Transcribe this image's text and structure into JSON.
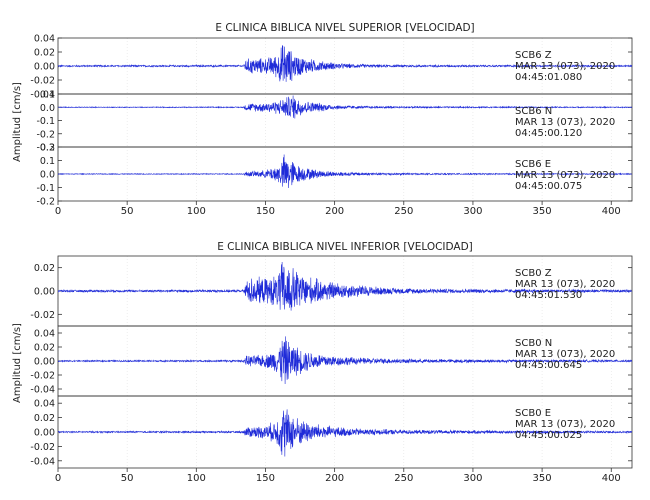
{
  "colors": {
    "trace": "#1f2bd8",
    "frame": "#333333",
    "text": "#222222",
    "grid": "#e2e2e2"
  },
  "chart_data": [
    {
      "type": "line",
      "title": "E CLINICA BIBLICA NIVEL SUPERIOR [VELOCIDAD]",
      "ylabel": "Amplitud [cm/s]",
      "xlabel": "",
      "xlim": [
        0,
        415
      ],
      "xticks": [
        0,
        50,
        100,
        150,
        200,
        250,
        300,
        350,
        400
      ],
      "grid": true,
      "legend": "none",
      "series": [
        {
          "name": "SCB6 Z",
          "label_lines": [
            "SCB6 Z",
            "MAR 13 (073), 2020",
            "04:45:01.080"
          ],
          "ylim": [
            -0.04,
            0.04
          ],
          "yticks": [
            0.04,
            0.02,
            0.0,
            -0.02,
            -0.04
          ],
          "ytick_labels": [
            "0.04",
            "0.02",
            "0.00",
            "-0.02",
            "-0.04"
          ],
          "envelope": [
            [
              0,
              0.0012
            ],
            [
              134,
              0.0015
            ],
            [
              136,
              0.011
            ],
            [
              140,
              0.013
            ],
            [
              150,
              0.012
            ],
            [
              158,
              0.018
            ],
            [
              163,
              0.038
            ],
            [
              167,
              0.028
            ],
            [
              172,
              0.018
            ],
            [
              180,
              0.012
            ],
            [
              190,
              0.008
            ],
            [
              200,
              0.005
            ],
            [
              215,
              0.003
            ],
            [
              240,
              0.002
            ],
            [
              300,
              0.0015
            ],
            [
              415,
              0.0012
            ]
          ]
        },
        {
          "name": "SCB6 N",
          "label_lines": [
            "SCB6 N",
            "MAR 13 (073), 2020",
            "04:45:00.120"
          ],
          "ylim": [
            -0.3,
            0.1
          ],
          "yticks": [
            0.1,
            0.0,
            -0.1,
            -0.2,
            -0.3
          ],
          "ytick_labels": [
            "0.1",
            "0.0",
            "-0.1",
            "-0.2",
            "-0.3"
          ],
          "envelope": [
            [
              0,
              0.003
            ],
            [
              134,
              0.004
            ],
            [
              136,
              0.03
            ],
            [
              150,
              0.04
            ],
            [
              160,
              0.06
            ],
            [
              166,
              0.09
            ],
            [
              170,
              0.11
            ],
            [
              174,
              0.08
            ],
            [
              180,
              0.05
            ],
            [
              190,
              0.035
            ],
            [
              200,
              0.02
            ],
            [
              220,
              0.01
            ],
            [
              260,
              0.006
            ],
            [
              415,
              0.004
            ]
          ]
        },
        {
          "name": "SCB6 E",
          "label_lines": [
            "SCB6 E",
            "MAR 13 (073), 2020",
            "04:45:00.075"
          ],
          "ylim": [
            -0.2,
            0.2
          ],
          "yticks": [
            0.2,
            0.1,
            0.0,
            -0.1,
            -0.2
          ],
          "ytick_labels": [
            "0.2",
            "0.1",
            "0.0",
            "-0.1",
            "-0.2"
          ],
          "envelope": [
            [
              0,
              0.003
            ],
            [
              134,
              0.004
            ],
            [
              136,
              0.02
            ],
            [
              150,
              0.03
            ],
            [
              160,
              0.08
            ],
            [
              164,
              0.17
            ],
            [
              168,
              0.13
            ],
            [
              172,
              0.08
            ],
            [
              180,
              0.05
            ],
            [
              190,
              0.03
            ],
            [
              200,
              0.02
            ],
            [
              220,
              0.012
            ],
            [
              260,
              0.006
            ],
            [
              415,
              0.004
            ]
          ]
        }
      ]
    },
    {
      "type": "line",
      "title": "E CLINICA BIBLICA NIVEL INFERIOR [VELOCIDAD]",
      "ylabel": "Amplitud [cm/s]",
      "xlabel": "",
      "xlim": [
        0,
        415
      ],
      "xticks": [
        0,
        50,
        100,
        150,
        200,
        250,
        300,
        350,
        400
      ],
      "grid": true,
      "legend": "none",
      "series": [
        {
          "name": "SCB0 Z",
          "label_lines": [
            "SCB0 Z",
            "MAR 13 (073), 2020",
            "04:45:01.530"
          ],
          "ylim": [
            -0.03,
            0.03
          ],
          "yticks": [
            0.02,
            0.0,
            -0.02
          ],
          "ytick_labels": [
            "0.02",
            "0.00",
            "-0.02"
          ],
          "envelope": [
            [
              0,
              0.001
            ],
            [
              134,
              0.0012
            ],
            [
              136,
              0.01
            ],
            [
              140,
              0.013
            ],
            [
              150,
              0.012
            ],
            [
              158,
              0.015
            ],
            [
              162,
              0.028
            ],
            [
              168,
              0.024
            ],
            [
              175,
              0.017
            ],
            [
              185,
              0.012
            ],
            [
              200,
              0.008
            ],
            [
              215,
              0.006
            ],
            [
              240,
              0.003
            ],
            [
              280,
              0.002
            ],
            [
              415,
              0.0012
            ]
          ]
        },
        {
          "name": "SCB0 N",
          "label_lines": [
            "SCB0 N",
            "MAR 13 (073), 2020",
            "04:45:00.645"
          ],
          "ylim": [
            -0.05,
            0.05
          ],
          "yticks": [
            0.04,
            0.02,
            0.0,
            -0.02,
            -0.04
          ],
          "ytick_labels": [
            "0.04",
            "0.02",
            "0.00",
            "-0.02",
            "-0.04"
          ],
          "envelope": [
            [
              0,
              0.001
            ],
            [
              134,
              0.0015
            ],
            [
              136,
              0.008
            ],
            [
              150,
              0.01
            ],
            [
              158,
              0.018
            ],
            [
              163,
              0.042
            ],
            [
              168,
              0.03
            ],
            [
              175,
              0.02
            ],
            [
              185,
              0.013
            ],
            [
              200,
              0.008
            ],
            [
              220,
              0.005
            ],
            [
              260,
              0.003
            ],
            [
              415,
              0.0015
            ]
          ]
        },
        {
          "name": "SCB0 E",
          "label_lines": [
            "SCB0 E",
            "MAR 13 (073), 2020",
            "04:45:00.025"
          ],
          "ylim": [
            -0.05,
            0.05
          ],
          "yticks": [
            0.04,
            0.02,
            0.0,
            -0.02,
            -0.04
          ],
          "ytick_labels": [
            "0.04",
            "0.02",
            "0.00",
            "-0.02",
            "-0.04"
          ],
          "envelope": [
            [
              0,
              0.001
            ],
            [
              134,
              0.0015
            ],
            [
              136,
              0.008
            ],
            [
              150,
              0.01
            ],
            [
              158,
              0.018
            ],
            [
              163,
              0.044
            ],
            [
              168,
              0.03
            ],
            [
              175,
              0.02
            ],
            [
              185,
              0.013
            ],
            [
              200,
              0.008
            ],
            [
              220,
              0.005
            ],
            [
              260,
              0.003
            ],
            [
              415,
              0.0015
            ]
          ]
        }
      ]
    }
  ]
}
